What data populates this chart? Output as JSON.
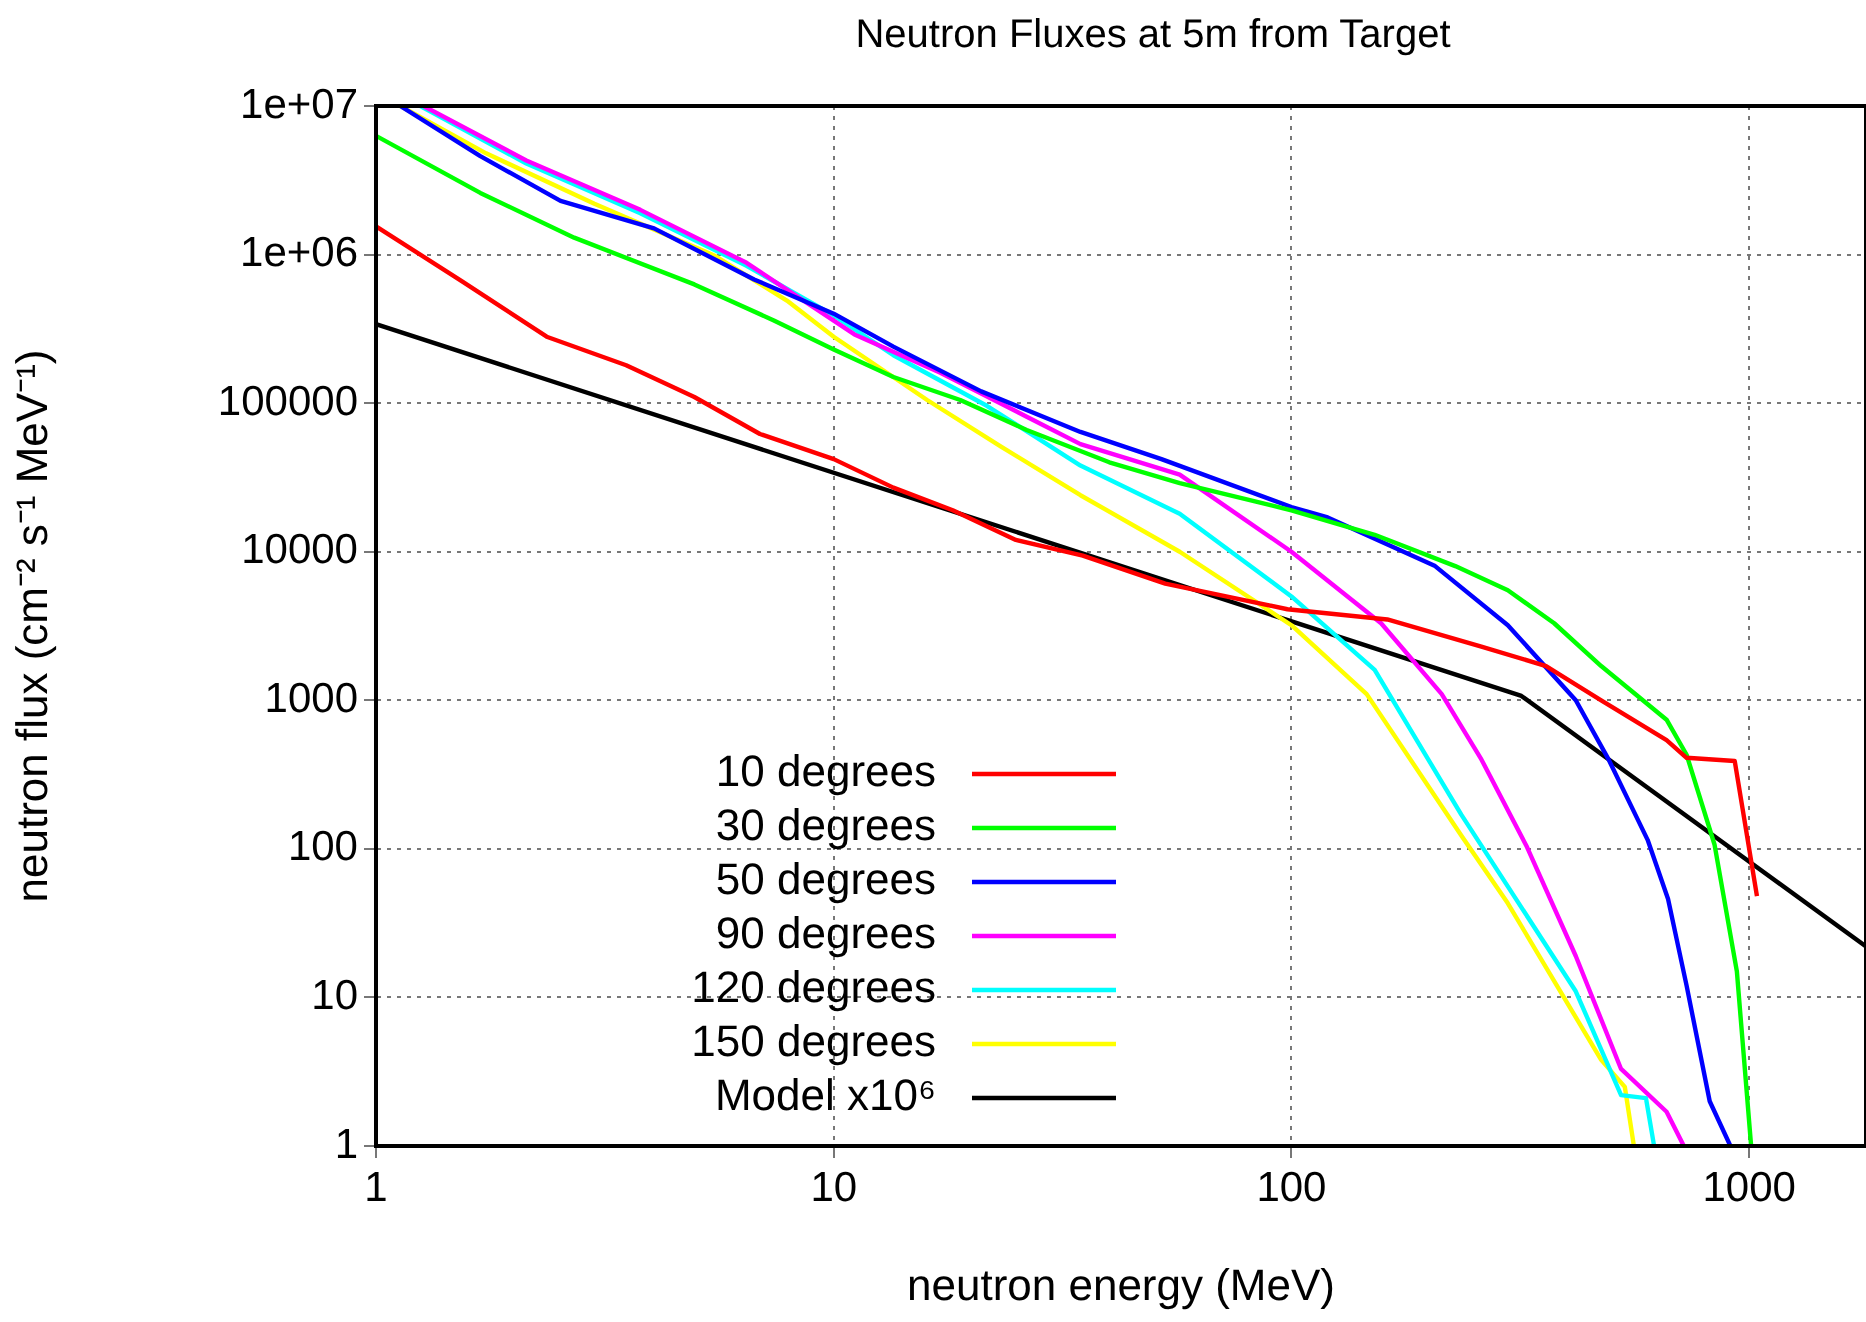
{
  "chart_data": {
    "type": "line",
    "title": "Neutron Fluxes at 5m from Target",
    "xlabel": "neutron energy (MeV)",
    "ylabel": "neutron flux (cm⁻² s⁻¹ MeV⁻¹)",
    "log": "xy",
    "grid": true,
    "legend": "bottom left",
    "marker": "none",
    "line_style": "solid",
    "xlim": [
      1,
      1800
    ],
    "xticks": [
      1,
      10,
      100,
      1000
    ],
    "ylim": [
      1,
      10000000
    ],
    "yticks": [
      1,
      10,
      100,
      1000,
      10000,
      100000,
      {
        "value": 1000000,
        "label": "1e+06"
      },
      {
        "value": 10000000,
        "label": "1e+07"
      }
    ],
    "series": [
      {
        "name": "10 degrees",
        "color": "#ff0000",
        "x": [
          1,
          1.53,
          2.36,
          3.52,
          4.96,
          6.9,
          10,
          13.5,
          18.2,
          25,
          35,
          53,
          98,
          162,
          260,
          360,
          475,
          660,
          730,
          930,
          1040
        ],
        "values": [
          1550000,
          670000,
          280000,
          180000,
          110000,
          62000,
          42000,
          27000,
          19000,
          12000,
          9400,
          6100,
          4100,
          3500,
          2300,
          1700,
          1000,
          540,
          410,
          390,
          48
        ]
      },
      {
        "name": "30 degrees",
        "color": "#00ff00",
        "x": [
          1,
          1.69,
          2.71,
          4.96,
          7.4,
          10,
          13.5,
          18.9,
          26.4,
          40,
          57,
          100,
          152,
          228,
          297,
          375,
          475,
          660,
          730,
          840,
          940,
          1010
        ],
        "values": [
          6300000,
          2600000,
          1300000,
          630000,
          360000,
          230000,
          150000,
          105000,
          66000,
          40000,
          29000,
          19000,
          13000,
          8000,
          5500,
          3300,
          1700,
          740,
          430,
          107,
          15,
          1
        ]
      },
      {
        "name": "50 degrees",
        "color": "#0000ff",
        "x": [
          1.13,
          1.69,
          2.53,
          4.05,
          6.7,
          10,
          13.5,
          21,
          34.6,
          52,
          100,
          120,
          206,
          297,
          418,
          493,
          600,
          665,
          730,
          820,
          910
        ],
        "values": [
          10000000,
          4600000,
          2300000,
          1500000,
          680000,
          400000,
          240000,
          120000,
          64000,
          42000,
          20000,
          17000,
          8000,
          3200,
          1000,
          400,
          115,
          46,
          12,
          2,
          1
        ]
      },
      {
        "name": "90 degrees",
        "color": "#ff00ff",
        "x": [
          1.27,
          2.13,
          3.78,
          6.45,
          11.1,
          17.1,
          26.4,
          34.6,
          57,
          100,
          157,
          213,
          260,
          326,
          418,
          525,
          660,
          720
        ],
        "values": [
          10000000,
          4300000,
          2000000,
          880000,
          290000,
          160000,
          81000,
          53000,
          33000,
          10000,
          3300,
          1100,
          400,
          105,
          19,
          3.3,
          1.7,
          1
        ]
      },
      {
        "name": "120 degrees",
        "color": "#00ffff",
        "x": [
          1.25,
          2.13,
          3.78,
          6.45,
          10,
          13.5,
          21.6,
          34.6,
          57,
          100,
          152,
          235,
          418,
          525,
          595,
          620
        ],
        "values": [
          10000000,
          4100000,
          1900000,
          840000,
          390000,
          210000,
          96000,
          38000,
          18000,
          5000,
          1600,
          170,
          11,
          2.2,
          2.1,
          1
        ]
      },
      {
        "name": "150 degrees",
        "color": "#ffff00",
        "x": [
          1.13,
          1.74,
          3,
          5.5,
          7.9,
          10,
          16,
          23.2,
          34.6,
          57,
          100,
          146,
          235,
          297,
          475,
          535,
          560
        ],
        "values": [
          10000000,
          4800000,
          2200000,
          980000,
          490000,
          280000,
          105000,
          51000,
          24000,
          10000,
          3200,
          1100,
          123,
          43,
          3.8,
          2.5,
          1
        ]
      },
      {
        "name": "Model x10⁶",
        "color": "#000000",
        "x": [
          1,
          318,
          1800
        ],
        "values": [
          340000,
          1070,
          22
        ]
      }
    ]
  }
}
